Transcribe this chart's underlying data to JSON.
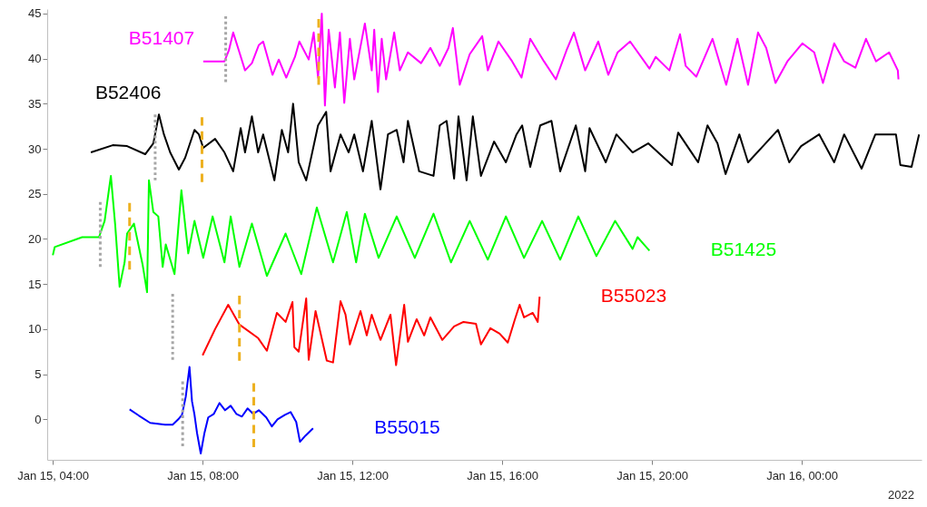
{
  "chart_data": {
    "type": "line",
    "xlim": [
      "2022-01-15T03:51",
      "2022-01-16T03:12"
    ],
    "ylim": [
      -4.5,
      45.5
    ],
    "xticks": [
      {
        "value": "2022-01-15T04:00",
        "label": "Jan 15, 04:00"
      },
      {
        "value": "2022-01-15T08:00",
        "label": "Jan 15, 08:00"
      },
      {
        "value": "2022-01-15T12:00",
        "label": "Jan 15, 12:00"
      },
      {
        "value": "2022-01-15T16:00",
        "label": "Jan 15, 16:00"
      },
      {
        "value": "2022-01-15T20:00",
        "label": "Jan 15, 20:00"
      },
      {
        "value": "2022-01-16T00:00",
        "label": "Jan 16, 00:00"
      }
    ],
    "yticks": [
      0,
      5,
      10,
      15,
      20,
      25,
      30,
      35,
      40,
      45
    ],
    "grid": false,
    "line_style": "solid",
    "marker": "none",
    "annotations": [
      "2022"
    ],
    "series": [
      {
        "name": "B51407",
        "color": "#ff00ff",
        "x": [
          "2022-01-15T08:01",
          "2022-01-15T08:35",
          "2022-01-15T08:42",
          "2022-01-15T08:49",
          "2022-01-15T08:59",
          "2022-01-15T09:08",
          "2022-01-15T09:19",
          "2022-01-15T09:30",
          "2022-01-15T09:37",
          "2022-01-15T09:52",
          "2022-01-15T10:02",
          "2022-01-15T10:14",
          "2022-01-15T10:28",
          "2022-01-15T10:35",
          "2022-01-15T10:50",
          "2022-01-15T10:58",
          "2022-01-15T11:05",
          "2022-01-15T11:11",
          "2022-01-15T11:16",
          "2022-01-15T11:22",
          "2022-01-15T11:32",
          "2022-01-15T11:40",
          "2022-01-15T11:47",
          "2022-01-15T11:56",
          "2022-01-15T12:03",
          "2022-01-15T12:20",
          "2022-01-15T12:31",
          "2022-01-15T12:35",
          "2022-01-15T12:41",
          "2022-01-15T12:47",
          "2022-01-15T12:54",
          "2022-01-15T13:07",
          "2022-01-15T13:16",
          "2022-01-15T13:29",
          "2022-01-15T13:50",
          "2022-01-15T14:05",
          "2022-01-15T14:20",
          "2022-01-15T14:34",
          "2022-01-15T14:41",
          "2022-01-15T14:52",
          "2022-01-15T15:08",
          "2022-01-15T15:28",
          "2022-01-15T15:37",
          "2022-01-15T15:54",
          "2022-01-15T16:16",
          "2022-01-15T16:31",
          "2022-01-15T16:45",
          "2022-01-15T17:07",
          "2022-01-15T17:26",
          "2022-01-15T17:43",
          "2022-01-15T17:55",
          "2022-01-15T18:13",
          "2022-01-15T18:34",
          "2022-01-15T18:50",
          "2022-01-15T19:05",
          "2022-01-15T19:25",
          "2022-01-15T19:56",
          "2022-01-15T20:06",
          "2022-01-15T20:28",
          "2022-01-15T20:45",
          "2022-01-15T20:54",
          "2022-01-15T21:11",
          "2022-01-15T21:37",
          "2022-01-15T21:59",
          "2022-01-15T22:17",
          "2022-01-15T22:34",
          "2022-01-15T22:50",
          "2022-01-15T23:03",
          "2022-01-15T23:18",
          "2022-01-15T23:37",
          "2022-01-16T00:01",
          "2022-01-16T00:20",
          "2022-01-16T00:34",
          "2022-01-16T00:52",
          "2022-01-16T01:08",
          "2022-01-16T01:26",
          "2022-01-16T01:43",
          "2022-01-16T01:59",
          "2022-01-16T02:20",
          "2022-01-16T02:34",
          "2022-01-16T02:35"
        ],
        "values": [
          39.7,
          39.7,
          40.9,
          42.9,
          40.7,
          38.7,
          39.5,
          41.5,
          41.9,
          38.2,
          39.9,
          37.9,
          40.2,
          41.9,
          39.9,
          42.9,
          37.9,
          45.0,
          34.8,
          43.2,
          36.8,
          42.9,
          35.1,
          42.2,
          37.7,
          43.9,
          38.7,
          43.2,
          36.3,
          42.2,
          37.7,
          42.9,
          38.7,
          40.7,
          39.5,
          41.2,
          39.2,
          41.2,
          43.4,
          37.1,
          40.5,
          42.5,
          38.7,
          41.9,
          39.7,
          37.9,
          42.2,
          39.7,
          37.7,
          40.9,
          42.9,
          38.7,
          41.9,
          38.2,
          40.7,
          41.9,
          38.9,
          40.2,
          38.7,
          42.7,
          39.2,
          38.0,
          42.2,
          37.1,
          42.2,
          37.1,
          42.9,
          41.2,
          37.3,
          39.7,
          41.7,
          40.7,
          37.3,
          41.7,
          39.7,
          39.0,
          42.2,
          39.7,
          40.7,
          38.7,
          37.7
        ]
      },
      {
        "name": "B52406",
        "color": "#000000",
        "x": [
          "2022-01-15T05:01",
          "2022-01-15T05:36",
          "2022-01-15T05:59",
          "2022-01-15T06:28",
          "2022-01-15T06:41",
          "2022-01-15T06:50",
          "2022-01-15T06:58",
          "2022-01-15T07:08",
          "2022-01-15T07:22",
          "2022-01-15T07:32",
          "2022-01-15T07:47",
          "2022-01-15T07:54",
          "2022-01-15T08:01",
          "2022-01-15T08:20",
          "2022-01-15T08:35",
          "2022-01-15T08:49",
          "2022-01-15T09:01",
          "2022-01-15T09:08",
          "2022-01-15T09:19",
          "2022-01-15T09:29",
          "2022-01-15T09:37",
          "2022-01-15T09:55",
          "2022-01-15T10:07",
          "2022-01-15T10:17",
          "2022-01-15T10:25",
          "2022-01-15T10:34",
          "2022-01-15T10:46",
          "2022-01-15T11:05",
          "2022-01-15T11:18",
          "2022-01-15T11:25",
          "2022-01-15T11:41",
          "2022-01-15T11:54",
          "2022-01-15T12:03",
          "2022-01-15T12:17",
          "2022-01-15T12:31",
          "2022-01-15T12:45",
          "2022-01-15T12:57",
          "2022-01-15T13:11",
          "2022-01-15T13:22",
          "2022-01-15T13:29",
          "2022-01-15T13:47",
          "2022-01-15T14:10",
          "2022-01-15T14:20",
          "2022-01-15T14:31",
          "2022-01-15T14:43",
          "2022-01-15T14:50",
          "2022-01-15T15:03",
          "2022-01-15T15:13",
          "2022-01-15T15:26",
          "2022-01-15T15:47",
          "2022-01-15T16:06",
          "2022-01-15T16:23",
          "2022-01-15T16:32",
          "2022-01-15T16:45",
          "2022-01-15T17:01",
          "2022-01-15T17:19",
          "2022-01-15T17:33",
          "2022-01-15T17:58",
          "2022-01-15T18:13",
          "2022-01-15T18:20",
          "2022-01-15T18:46",
          "2022-01-15T19:03",
          "2022-01-15T19:29",
          "2022-01-15T19:54",
          "2022-01-15T20:32",
          "2022-01-15T20:42",
          "2022-01-15T21:14",
          "2022-01-15T21:29",
          "2022-01-15T21:45",
          "2022-01-15T21:58",
          "2022-01-15T22:20",
          "2022-01-15T22:34",
          "2022-01-15T22:58",
          "2022-01-15T23:22",
          "2022-01-15T23:40",
          "2022-01-15T23:59",
          "2022-01-16T00:28",
          "2022-01-16T00:52",
          "2022-01-16T01:08",
          "2022-01-16T01:36",
          "2022-01-16T01:58",
          "2022-01-16T02:31",
          "2022-01-16T02:38",
          "2022-01-16T02:56",
          "2022-01-16T03:08"
        ],
        "values": [
          29.6,
          30.4,
          30.3,
          29.4,
          30.6,
          33.8,
          31.6,
          29.6,
          27.7,
          29.0,
          32.1,
          31.6,
          30.1,
          31.1,
          29.6,
          27.5,
          32.3,
          29.6,
          33.6,
          29.6,
          31.6,
          26.5,
          32.1,
          29.6,
          35.0,
          28.5,
          26.5,
          32.6,
          34.1,
          27.5,
          31.6,
          29.6,
          31.6,
          27.5,
          33.1,
          25.5,
          31.6,
          32.1,
          28.5,
          33.1,
          27.5,
          27.0,
          32.6,
          33.1,
          26.7,
          33.6,
          26.5,
          33.6,
          27.0,
          30.8,
          28.5,
          31.6,
          32.6,
          28.0,
          32.6,
          33.1,
          27.5,
          32.6,
          27.5,
          32.3,
          28.5,
          31.6,
          29.6,
          30.6,
          28.2,
          31.8,
          28.5,
          32.6,
          30.6,
          27.2,
          31.6,
          28.5,
          30.3,
          32.1,
          28.5,
          30.3,
          31.6,
          28.5,
          31.6,
          27.8,
          31.6,
          31.6,
          28.2,
          28.0,
          31.6
        ]
      },
      {
        "name": "B51425",
        "color": "#00ff00",
        "x": [
          "2022-01-15T04:00",
          "2022-01-15T04:03",
          "2022-01-15T04:47",
          "2022-01-15T05:14",
          "2022-01-15T05:23",
          "2022-01-15T05:33",
          "2022-01-15T05:40",
          "2022-01-15T05:47",
          "2022-01-15T05:55",
          "2022-01-15T05:59",
          "2022-01-15T06:10",
          "2022-01-15T06:24",
          "2022-01-15T06:31",
          "2022-01-15T06:34",
          "2022-01-15T06:41",
          "2022-01-15T06:49",
          "2022-01-15T06:56",
          "2022-01-15T07:01",
          "2022-01-15T07:15",
          "2022-01-15T07:26",
          "2022-01-15T07:37",
          "2022-01-15T07:47",
          "2022-01-15T08:01",
          "2022-01-15T08:16",
          "2022-01-15T08:35",
          "2022-01-15T08:45",
          "2022-01-15T08:59",
          "2022-01-15T09:19",
          "2022-01-15T09:43",
          "2022-01-15T10:13",
          "2022-01-15T10:38",
          "2022-01-15T11:03",
          "2022-01-15T11:29",
          "2022-01-15T11:51",
          "2022-01-15T12:06",
          "2022-01-15T12:20",
          "2022-01-15T12:42",
          "2022-01-15T13:11",
          "2022-01-15T13:40",
          "2022-01-15T14:10",
          "2022-01-15T14:38",
          "2022-01-15T15:08",
          "2022-01-15T15:37",
          "2022-01-15T16:06",
          "2022-01-15T16:35",
          "2022-01-15T17:04",
          "2022-01-15T17:33",
          "2022-01-15T18:02",
          "2022-01-15T18:31",
          "2022-01-15T19:01",
          "2022-01-15T19:29",
          "2022-01-15T19:37",
          "2022-01-15T19:47",
          "2022-01-15T19:56"
        ],
        "values": [
          18.2,
          19.1,
          20.2,
          20.2,
          22.0,
          27.0,
          21.5,
          14.7,
          17.4,
          20.6,
          21.7,
          17.1,
          14.1,
          26.5,
          23.0,
          22.5,
          16.9,
          19.4,
          16.1,
          25.4,
          18.4,
          22.0,
          17.9,
          22.5,
          17.4,
          22.5,
          16.9,
          21.7,
          15.9,
          20.6,
          16.1,
          23.5,
          17.4,
          23.0,
          17.4,
          22.8,
          17.9,
          22.5,
          17.9,
          22.8,
          17.4,
          22.0,
          17.7,
          22.5,
          17.9,
          22.0,
          17.7,
          22.5,
          18.1,
          22.0,
          18.9,
          20.2,
          19.4,
          18.7
        ]
      },
      {
        "name": "B55023",
        "color": "#ff0000",
        "x": [
          "2022-01-15T08:00",
          "2022-01-15T08:20",
          "2022-01-15T08:41",
          "2022-01-15T08:59",
          "2022-01-15T09:29",
          "2022-01-15T09:43",
          "2022-01-15T09:59",
          "2022-01-15T10:13",
          "2022-01-15T10:24",
          "2022-01-15T10:27",
          "2022-01-15T10:34",
          "2022-01-15T10:46",
          "2022-01-15T10:50",
          "2022-01-15T11:01",
          "2022-01-15T11:19",
          "2022-01-15T11:29",
          "2022-01-15T11:41",
          "2022-01-15T11:49",
          "2022-01-15T11:56",
          "2022-01-15T12:13",
          "2022-01-15T12:23",
          "2022-01-15T12:31",
          "2022-01-15T12:45",
          "2022-01-15T13:01",
          "2022-01-15T13:10",
          "2022-01-15T13:23",
          "2022-01-15T13:29",
          "2022-01-15T13:43",
          "2022-01-15T13:55",
          "2022-01-15T14:05",
          "2022-01-15T14:24",
          "2022-01-15T14:43",
          "2022-01-15T14:58",
          "2022-01-15T15:18",
          "2022-01-15T15:26",
          "2022-01-15T15:41",
          "2022-01-15T15:56",
          "2022-01-15T16:09",
          "2022-01-15T16:20",
          "2022-01-15T16:28",
          "2022-01-15T16:35",
          "2022-01-15T16:49",
          "2022-01-15T16:57",
          "2022-01-15T17:00"
        ],
        "values": [
          7.1,
          10.0,
          12.7,
          10.5,
          9.0,
          7.6,
          11.8,
          10.8,
          13.0,
          8.0,
          7.5,
          13.4,
          6.6,
          12.0,
          6.5,
          6.3,
          13.1,
          11.6,
          8.3,
          12.0,
          9.3,
          11.6,
          8.8,
          11.6,
          6.0,
          12.7,
          8.6,
          11.1,
          9.3,
          11.3,
          8.8,
          10.3,
          10.8,
          10.6,
          8.3,
          10.1,
          9.5,
          8.5,
          11.0,
          12.7,
          11.3,
          11.8,
          10.8,
          13.6
        ]
      },
      {
        "name": "B55015",
        "color": "#0000ff",
        "x": [
          "2022-01-15T06:03",
          "2022-01-15T06:18",
          "2022-01-15T06:36",
          "2022-01-15T07:00",
          "2022-01-15T07:12",
          "2022-01-15T07:21",
          "2022-01-15T07:27",
          "2022-01-15T07:33",
          "2022-01-15T07:39",
          "2022-01-15T07:43",
          "2022-01-15T07:47",
          "2022-01-15T07:51",
          "2022-01-15T07:57",
          "2022-01-15T08:03",
          "2022-01-15T08:09",
          "2022-01-15T08:18",
          "2022-01-15T08:27",
          "2022-01-15T08:36",
          "2022-01-15T08:45",
          "2022-01-15T08:54",
          "2022-01-15T09:03",
          "2022-01-15T09:12",
          "2022-01-15T09:21",
          "2022-01-15T09:30",
          "2022-01-15T09:42",
          "2022-01-15T09:51",
          "2022-01-15T10:00",
          "2022-01-15T10:12",
          "2022-01-15T10:21",
          "2022-01-15T10:30",
          "2022-01-15T10:36",
          "2022-01-15T10:45",
          "2022-01-15T10:57"
        ],
        "values": [
          1.1,
          0.4,
          -0.4,
          -0.6,
          -0.6,
          0.0,
          0.5,
          2.5,
          5.8,
          2.0,
          0.5,
          -1.5,
          -3.8,
          -1.5,
          0.2,
          0.6,
          1.8,
          1.0,
          1.5,
          0.6,
          0.3,
          1.2,
          0.6,
          1.0,
          0.2,
          -0.8,
          0.0,
          0.5,
          0.8,
          -0.3,
          -2.5,
          -1.8,
          -1.0
        ]
      },
      {
        "color": "#a6a6a6",
        "line_style": "dotted",
        "x": [
          "2022-01-15T08:37",
          "2022-01-15T08:37"
        ],
        "values": [
          44.7,
          37.4
        ]
      },
      {
        "color": "#edb120",
        "line_style": "dashed",
        "x": [
          "2022-01-15T11:06",
          "2022-01-15T11:06"
        ],
        "values": [
          44.4,
          37.1
        ]
      },
      {
        "color": "#a6a6a6",
        "line_style": "dotted",
        "x": [
          "2022-01-15T06:44",
          "2022-01-15T06:44"
        ],
        "values": [
          33.8,
          26.5
        ]
      },
      {
        "color": "#edb120",
        "line_style": "dashed",
        "x": [
          "2022-01-15T07:59",
          "2022-01-15T07:59"
        ],
        "values": [
          33.5,
          26.3
        ]
      },
      {
        "color": "#a6a6a6",
        "line_style": "dotted",
        "x": [
          "2022-01-15T05:16",
          "2022-01-15T05:16"
        ],
        "values": [
          24.1,
          16.9
        ]
      },
      {
        "color": "#edb120",
        "line_style": "dashed",
        "x": [
          "2022-01-15T06:03",
          "2022-01-15T06:03"
        ],
        "values": [
          24.0,
          16.6
        ]
      },
      {
        "color": "#a6a6a6",
        "line_style": "dotted",
        "x": [
          "2022-01-15T07:12",
          "2022-01-15T07:12"
        ],
        "values": [
          13.9,
          6.6
        ]
      },
      {
        "color": "#edb120",
        "line_style": "dashed",
        "x": [
          "2022-01-15T08:59",
          "2022-01-15T08:59"
        ],
        "values": [
          13.7,
          6.5
        ]
      },
      {
        "color": "#a6a6a6",
        "line_style": "dotted",
        "x": [
          "2022-01-15T07:28",
          "2022-01-15T07:28"
        ],
        "values": [
          4.2,
          -3.0
        ]
      },
      {
        "color": "#edb120",
        "line_style": "dashed",
        "x": [
          "2022-01-15T09:22",
          "2022-01-15T09:22"
        ],
        "values": [
          4.0,
          -3.1
        ]
      }
    ]
  }
}
